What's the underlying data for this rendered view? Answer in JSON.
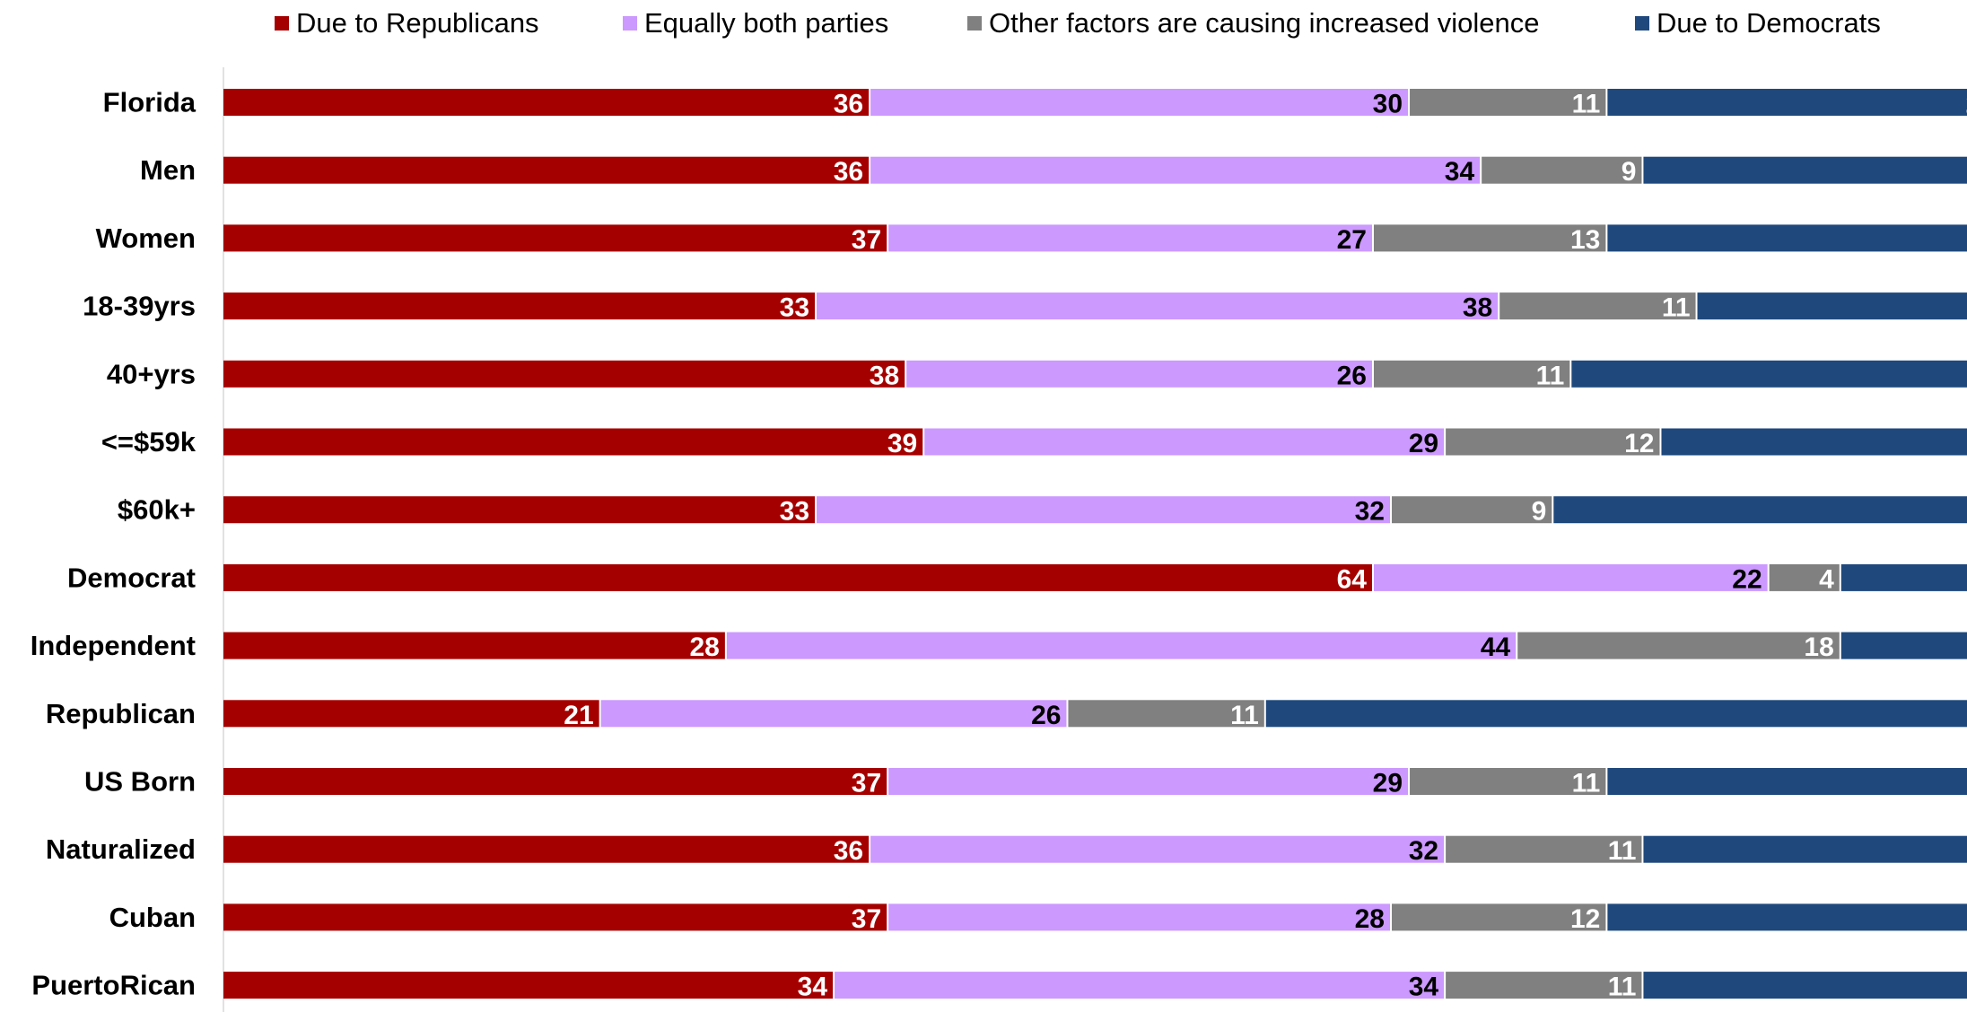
{
  "chart_data": {
    "type": "bar",
    "orientation": "horizontal",
    "stacked": true,
    "title": "",
    "xlabel": "",
    "ylabel": "",
    "xlim": [
      0,
      100
    ],
    "legend_position": "top",
    "grid": false,
    "categories": [
      "Florida",
      "Men",
      "Women",
      "18-39yrs",
      "40+yrs",
      "<=$59k",
      "$60k+",
      "Democrat",
      "Independent",
      "Republican",
      "US Born",
      "Naturalized",
      "Cuban",
      "PuertoRican"
    ],
    "series": [
      {
        "name": "Due to Republicans",
        "color": "#A50000",
        "label_color": "#FFFFFF",
        "values": [
          36,
          36,
          37,
          33,
          38,
          39,
          33,
          64,
          28,
          21,
          37,
          36,
          37,
          34
        ]
      },
      {
        "name": "Equally both parties",
        "color": "#CC99FF",
        "label_color": "#000000",
        "values": [
          30,
          34,
          27,
          38,
          26,
          29,
          32,
          22,
          44,
          26,
          29,
          32,
          28,
          34
        ]
      },
      {
        "name": "Other factors are causing increased violence",
        "color": "#808080",
        "label_color": "#FFFFFF",
        "values": [
          11,
          9,
          13,
          11,
          11,
          12,
          9,
          4,
          18,
          11,
          11,
          11,
          12,
          11
        ]
      },
      {
        "name": "Due to Democrats",
        "color": "#1F497D",
        "label_color": "#FFFFFF",
        "values": [
          22,
          21,
          23,
          18,
          25,
          19,
          26,
          10,
          10,
          42,
          24,
          21,
          23,
          22
        ]
      }
    ]
  }
}
